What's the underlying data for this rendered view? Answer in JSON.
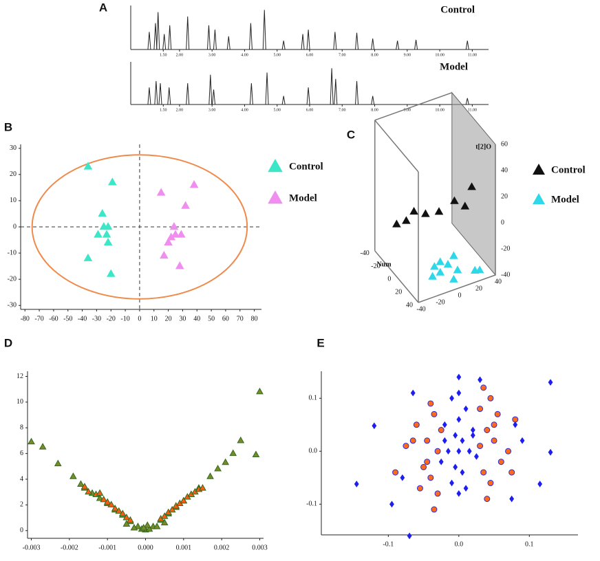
{
  "chart_data": [
    {
      "type": "peaks",
      "label": "A",
      "title": "Control",
      "xlim": [
        0.5,
        11.5
      ],
      "ylim": [
        0,
        100
      ],
      "xticks": [
        {
          "value": 1.5,
          "label": "1.50"
        },
        {
          "value": 2,
          "label": "2.00"
        },
        {
          "value": 3,
          "label": "3.00"
        },
        {
          "value": 4,
          "label": "4.00"
        },
        {
          "value": 5,
          "label": "5.00"
        },
        {
          "value": 6,
          "label": "6.00"
        },
        {
          "value": 7,
          "label": "7.00"
        },
        {
          "value": 8,
          "label": "8.00"
        },
        {
          "value": 9,
          "label": "9.00"
        },
        {
          "value": 10,
          "label": "10.00"
        },
        {
          "value": 11,
          "label": "11.00"
        }
      ],
      "color": "#222222",
      "x": [
        1.07,
        1.26,
        1.34,
        1.53,
        1.7,
        2.25,
        2.9,
        3.09,
        3.51,
        4.19,
        4.61,
        5.2,
        5.79,
        5.96,
        6.78,
        7.45,
        7.94,
        8.7,
        9.27,
        10.85
      ],
      "values": [
        40,
        60,
        85,
        35,
        55,
        75,
        55,
        45,
        30,
        60,
        90,
        20,
        35,
        45,
        40,
        38,
        25,
        20,
        22,
        20
      ]
    },
    {
      "type": "peaks",
      "title": "Model",
      "xlim": [
        0.5,
        11.5
      ],
      "ylim": [
        0,
        100
      ],
      "xticks": [
        {
          "value": 1.5,
          "label": "1.50"
        },
        {
          "value": 2,
          "label": "2.00"
        },
        {
          "value": 3,
          "label": "3.00"
        },
        {
          "value": 4,
          "label": "4.00"
        },
        {
          "value": 5,
          "label": "5.00"
        },
        {
          "value": 6,
          "label": "6.00"
        },
        {
          "value": 7,
          "label": "7.00"
        },
        {
          "value": 8,
          "label": "8.00"
        },
        {
          "value": 9,
          "label": "9.00"
        },
        {
          "value": 10,
          "label": "10.00"
        },
        {
          "value": 11,
          "label": "11.00"
        }
      ],
      "color": "#222222",
      "x": [
        1.07,
        1.28,
        1.41,
        1.68,
        2.25,
        2.95,
        3.05,
        4.21,
        4.69,
        5.2,
        5.96,
        6.68,
        6.8,
        7.45,
        7.94,
        10.85
      ],
      "values": [
        40,
        55,
        50,
        40,
        50,
        70,
        35,
        50,
        75,
        20,
        40,
        85,
        60,
        55,
        20,
        15
      ]
    },
    {
      "type": "scatter",
      "label": "B",
      "xlim": [
        -83,
        85
      ],
      "ylim": [
        -31.5,
        31.5
      ],
      "xticks": [
        -80,
        -70,
        -60,
        -50,
        -40,
        -30,
        -20,
        -10,
        0,
        10,
        20,
        30,
        40,
        50,
        60,
        70,
        80
      ],
      "yticks": [
        -30,
        -20,
        -10,
        0,
        10,
        20,
        30
      ],
      "zero_lines": true,
      "ellipse": {
        "rx": 75,
        "ry": 27.5,
        "color": "#f08a4b"
      },
      "series": [
        {
          "name": "Control",
          "color": "#3ee6c8",
          "marker": "triangle",
          "x": [
            -36,
            -19,
            -26,
            -25,
            -22,
            -23,
            -29,
            -22,
            -36,
            -20
          ],
          "values": [
            23,
            17,
            5,
            0,
            0,
            -3,
            -3,
            -6,
            -12,
            -18
          ]
        },
        {
          "name": "Model",
          "color": "#f08ef0",
          "marker": "triangle",
          "x": [
            15,
            38,
            32,
            24,
            22,
            25,
            29,
            20,
            17,
            28
          ],
          "values": [
            13,
            16,
            8,
            0,
            -4,
            -3,
            -3,
            -6,
            -11,
            -15
          ]
        }
      ]
    },
    {
      "type": "scatter3d",
      "label": "C",
      "axis_labels": [
        "t[2]O",
        "Num"
      ],
      "xlim": [
        -40,
        40
      ],
      "ylim": [
        -40,
        40
      ],
      "zlim": [
        -40,
        60
      ],
      "xticks": [
        -40,
        -20,
        0,
        20,
        40
      ],
      "yticks": [
        40,
        20,
        0,
        -20,
        -40
      ],
      "zticks": [
        -40,
        -20,
        0,
        20,
        40,
        60
      ],
      "series": [
        {
          "name": "Control",
          "color": "#111111",
          "marker": "triangle",
          "x": [
            -40,
            -30,
            -22,
            -10,
            4,
            20,
            31,
            38
          ],
          "y": [
            0,
            0,
            0,
            0,
            0,
            0,
            0,
            0
          ],
          "values": [
            0,
            0,
            5,
            0,
            -2,
            2,
            -5,
            8
          ]
        },
        {
          "name": "Model",
          "color": "#2fd8e8",
          "marker": "triangle",
          "x": [
            -12,
            -6,
            -14,
            2,
            8,
            12,
            8,
            30,
            35,
            -6
          ],
          "y": [
            20,
            20,
            20,
            20,
            20,
            20,
            20,
            20,
            20,
            20
          ],
          "values": [
            -30,
            -28,
            -37,
            -32,
            -27,
            -39,
            -45,
            -44,
            -45,
            -36
          ]
        }
      ]
    },
    {
      "type": "scatter",
      "label": "D",
      "xlim": [
        -0.0031,
        0.0031
      ],
      "ylim": [
        -0.6,
        12.4
      ],
      "xticks": [
        -0.003,
        -0.002,
        -0.001,
        {
          "value": 0,
          "label": "0.000"
        },
        0.001,
        0.002,
        0.003
      ],
      "yticks": [
        0,
        2,
        4,
        6,
        8,
        10,
        12
      ],
      "series": [
        {
          "color": "#2f6b1c",
          "fill": "#7a8a2a",
          "marker": "triangle",
          "x": [
            -0.003,
            -0.0027,
            -0.0023,
            -0.0019,
            -0.0017,
            -0.0016,
            -0.0014,
            -0.0012,
            -0.001,
            -0.0008,
            -0.0006,
            -0.0004,
            -0.0002,
            0,
            0.0002,
            0.0004,
            0.0006,
            0.0008,
            0.001,
            0.0012,
            0.0014,
            0.0017,
            0.0019,
            0.0021,
            0.0023,
            0.0025,
            0.0029,
            0.003,
            -0.0003,
            -0.0001,
            0.0001,
            0.0003,
            5e-05,
            -5e-05,
            -0.0005,
            0.0005
          ],
          "values": [
            6.9,
            6.5,
            5.2,
            4.2,
            3.6,
            3.3,
            2.9,
            2.5,
            2.1,
            1.6,
            1.2,
            0.7,
            0.3,
            0.05,
            0.3,
            0.8,
            1.3,
            1.8,
            2.3,
            2.8,
            3.3,
            4.2,
            4.8,
            5.3,
            6.0,
            7.0,
            5.9,
            10.8,
            0.2,
            0.1,
            0.1,
            0.3,
            0.4,
            0.2,
            0.5,
            0.6
          ]
        },
        {
          "color": "#2f6b1c",
          "fill": "#ff5a14",
          "marker": "triangle",
          "x": [
            -0.0016,
            -0.0015,
            -0.0013,
            -0.0012,
            -0.0011,
            -0.001,
            -0.0009,
            -0.0008,
            -0.0007,
            -0.0006,
            -0.0005,
            -0.0004,
            0.0004,
            0.0005,
            0.0006,
            0.0007,
            0.0008,
            0.0009,
            0.001,
            0.0011,
            0.0012,
            0.0013,
            0.0014,
            0.0015
          ],
          "values": [
            3.4,
            3.0,
            2.8,
            2.9,
            2.4,
            2.2,
            2.0,
            1.7,
            1.5,
            1.3,
            1.0,
            0.8,
            0.9,
            1.1,
            1.4,
            1.6,
            1.9,
            2.1,
            2.3,
            2.6,
            2.8,
            3.0,
            3.2,
            3.3
          ]
        }
      ]
    },
    {
      "type": "scatter",
      "label": "E",
      "xlim": [
        -0.195,
        0.169
      ],
      "ylim": [
        -0.158,
        0.151
      ],
      "xticks": [
        -0.1,
        {
          "value": 0,
          "label": "0.0"
        },
        0.1
      ],
      "yticks": [
        0.1,
        {
          "value": 0,
          "label": "0.0"
        },
        -0.1
      ],
      "series": [
        {
          "color": "#2a2ad8",
          "fill": "#ff6a1a",
          "marker": "circle",
          "x": [
            -0.075,
            -0.06,
            -0.05,
            -0.045,
            -0.04,
            -0.035,
            -0.03,
            -0.03,
            -0.025,
            -0.04,
            -0.055,
            -0.065,
            0.03,
            0.035,
            0.04,
            0.045,
            0.05,
            0.055,
            0.06,
            0.07,
            0.075,
            0.03,
            0.04,
            0.05,
            -0.035,
            -0.045,
            0.035,
            0.045,
            -0.09,
            0.08
          ],
          "values": [
            0.01,
            0.05,
            -0.03,
            0.02,
            -0.05,
            0.07,
            0.0,
            -0.08,
            0.04,
            0.09,
            -0.07,
            0.02,
            0.01,
            -0.04,
            0.04,
            -0.06,
            0.02,
            0.07,
            -0.02,
            0.0,
            -0.04,
            0.08,
            -0.09,
            0.05,
            -0.11,
            -0.02,
            0.12,
            0.1,
            -0.04,
            0.06
          ]
        },
        {
          "color": "#1e1ef0",
          "fill": "#1e1ef0",
          "marker": "diamond",
          "x": [
            -0.145,
            -0.12,
            -0.07,
            0.13,
            0.13,
            0.115,
            0.075,
            -0.065,
            0.03,
            0.0,
            -0.01,
            0.01,
            -0.02,
            0.02,
            0.0,
            -0.015,
            0.015,
            0.0,
            -0.005,
            0.005,
            -0.025,
            0.025,
            -0.01,
            0.01,
            0.0,
            -0.02,
            0.02,
            0.0,
            0.005,
            -0.005,
            -0.095,
            0.09,
            0.08,
            -0.08
          ],
          "values": [
            -0.062,
            0.048,
            -0.16,
            0.13,
            -0.002,
            -0.062,
            -0.09,
            0.11,
            0.135,
            0.14,
            0.1,
            0.08,
            0.05,
            0.04,
            0.06,
            0.0,
            0.0,
            0.0,
            -0.03,
            -0.04,
            -0.02,
            -0.01,
            -0.06,
            -0.07,
            -0.08,
            0.02,
            0.03,
            0.11,
            0.02,
            0.03,
            -0.1,
            0.02,
            0.05,
            -0.05
          ]
        }
      ]
    }
  ]
}
